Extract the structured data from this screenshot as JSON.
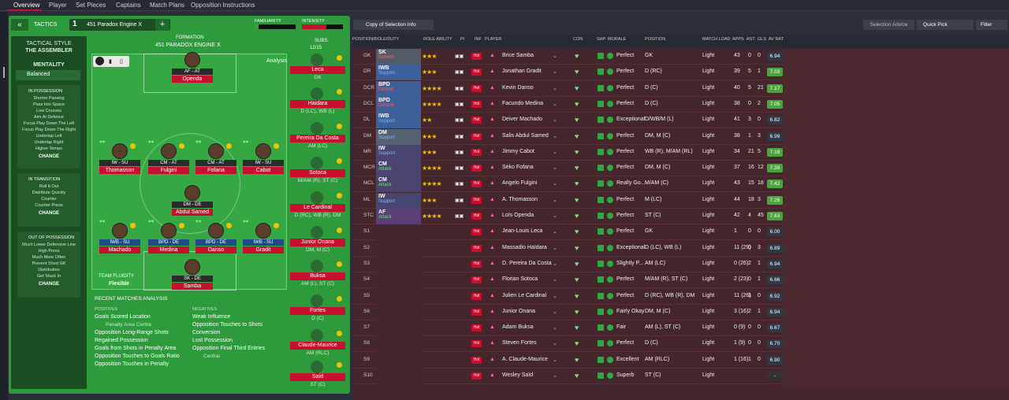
{
  "topnav": {
    "tabs": [
      "Overview",
      "Player",
      "Set Pieces",
      "Captains",
      "Match Plans",
      "Opposition Instructions"
    ]
  },
  "tactics": {
    "label": "TACTICS",
    "slot": "1",
    "name": "451 Paradox Engine X",
    "familiarity_label": "FAMILIARITY",
    "intensity_label": "INTENSITY",
    "formation_label": "FORMATION",
    "formation_name": "451 PARADOX ENGINE X",
    "subs_label": "SUBS:",
    "subs_count": "12/15",
    "analysis": "Analysis"
  },
  "sidebar": {
    "style_label": "TACTICAL STYLE",
    "style_value": "THE ASSEMBLER",
    "mentality_label": "MENTALITY",
    "mentality_value": "Balanced",
    "in_possession": {
      "title": "IN POSSESSION",
      "items": [
        "Shorter Passing",
        "Pass Into Space",
        "Low Crosses",
        "Aim At Defence",
        "Focus Play Down The Left",
        "Focus Play Down The Right",
        "Underlap Left",
        "Underlap Right",
        "Higher Tempo"
      ]
    },
    "in_transition": {
      "title": "IN TRANSITION",
      "items": [
        "Roll It Out",
        "Distribute Quickly",
        "Counter",
        "Counter-Press"
      ]
    },
    "out_of_possession": {
      "title": "OUT OF POSSESSION",
      "items": [
        "Much Lower Defensive Line",
        "High Press",
        "Much More Often",
        "Prevent Short GK",
        "Distribution",
        "Get Stuck In"
      ]
    },
    "change": "CHANGE"
  },
  "pitch": {
    "players": [
      {
        "role": "AF - AT",
        "name": "Openda"
      },
      {
        "role": "IW - SU",
        "name": "Thomasson"
      },
      {
        "role": "CM - AT",
        "name": "Fulgini"
      },
      {
        "role": "CM - AT",
        "name": "Fofana"
      },
      {
        "role": "IW - SU",
        "name": "Cabot"
      },
      {
        "role": "DM - DE",
        "name": "Abdul Samed"
      },
      {
        "role": "IWB - SU",
        "name": "Machado"
      },
      {
        "role": "BPD - DE",
        "name": "Medina"
      },
      {
        "role": "BPD - DE",
        "name": "Danso"
      },
      {
        "role": "IWB - SU",
        "name": "Gradit"
      },
      {
        "role": "SK - DE",
        "name": "Samba"
      }
    ],
    "fluidity_label": "TEAM FLUIDITY",
    "fluidity_value": "Flexible"
  },
  "subs": [
    {
      "name": "Leca",
      "pos": "GK"
    },
    {
      "name": "Haidara",
      "pos": "D (LC), WB (L)"
    },
    {
      "name": "Pereira Da Costa",
      "pos": "AM (LC)"
    },
    {
      "name": "Sotoca",
      "pos": "M/AM (R), ST (C)"
    },
    {
      "name": "Le Cardinal",
      "pos": "D (RC), WB (R), DM"
    },
    {
      "name": "Junior Onana",
      "pos": "DM, M (C)"
    },
    {
      "name": "Buksa",
      "pos": "AM (L), ST (C)"
    },
    {
      "name": "Fortes",
      "pos": "D (C)"
    },
    {
      "name": "Claude-Maurice",
      "pos": "AM (RLC)"
    },
    {
      "name": "Said",
      "pos": "ST (C)"
    }
  ],
  "recent": {
    "title": "RECENT MATCHES ANALYSIS",
    "pos_label": "POSITIVES",
    "neg_label": "NEGATIVES",
    "positives": [
      "Goals Scored Location",
      "Penalty Area Centre",
      "Opposition Long-Range Shots",
      "Regained Possession",
      "Goals from Shots in Penalty Area",
      "Opposition Touches to Goals Ratio",
      "Opposition Touches in Penalty"
    ],
    "negatives": [
      "Weak Influence",
      "Opposition Touches to Shots Conversion",
      "Lost Possession",
      "Opposition Final Third Entries",
      "Central"
    ]
  },
  "header_bar": {
    "selection": "Copy of Selection Info",
    "advice": "Selection Advice",
    "quick_pick": "Quick Pick",
    "filter": "Filter"
  },
  "columns": [
    "POSITION/ROLE/DUTY",
    "ROLE ABILITY",
    "PI",
    "INF",
    "PLAYER",
    "CON",
    "SHP",
    "MORALE",
    "POSITION",
    "MATCH LOAD",
    "APPS",
    "AST",
    "GLS",
    "AV RAT"
  ],
  "rows": [
    {
      "pos": "GK",
      "role": "SK",
      "duty": "Defend",
      "player": "Brice Samba",
      "morale": "Perfect",
      "position": "GK",
      "load": "Light",
      "apps": "43",
      "ast": "0",
      "gls": "0",
      "rat": "6.94"
    },
    {
      "pos": "DR",
      "role": "IWB",
      "duty": "Support",
      "player": "Jonathan Gradit",
      "morale": "Perfect",
      "position": "D (RC)",
      "load": "Light",
      "apps": "39",
      "ast": "5",
      "gls": "1",
      "rat": "7.03"
    },
    {
      "pos": "DCR",
      "role": "BPD",
      "duty": "Defend",
      "player": "Kevin Danso",
      "morale": "Perfect",
      "position": "D (C)",
      "load": "Light",
      "apps": "40",
      "ast": "5",
      "gls": "21",
      "rat": "7.17"
    },
    {
      "pos": "DCL",
      "role": "BPD",
      "duty": "Defend",
      "player": "Facundo Medina",
      "morale": "Perfect",
      "position": "D (C)",
      "load": "Light",
      "apps": "38",
      "ast": "0",
      "gls": "2",
      "rat": "7.05"
    },
    {
      "pos": "DL",
      "role": "IWB",
      "duty": "Support",
      "player": "Deiver Machado",
      "morale": "Exceptional",
      "position": "D/WB/M (L)",
      "load": "Light",
      "apps": "41",
      "ast": "3",
      "gls": "0",
      "rat": "6.82"
    },
    {
      "pos": "DM",
      "role": "DM",
      "duty": "Support",
      "player": "Salis Abdul Samed",
      "morale": "Perfect",
      "position": "DM, M (C)",
      "load": "Light",
      "apps": "38",
      "ast": "1",
      "gls": "3",
      "rat": "6.99"
    },
    {
      "pos": "MR",
      "role": "IW",
      "duty": "Support",
      "player": "Jimmy Cabot",
      "morale": "Perfect",
      "position": "WB (R), M/AM (RL)",
      "load": "Light",
      "apps": "34",
      "ast": "21",
      "gls": "5",
      "rat": "7.18"
    },
    {
      "pos": "MCR",
      "role": "CM",
      "duty": "Attack",
      "player": "Sėko Fofana",
      "morale": "Perfect",
      "position": "DM, M (C)",
      "load": "Light",
      "apps": "37",
      "ast": "16",
      "gls": "12",
      "rat": "7.39"
    },
    {
      "pos": "MCL",
      "role": "CM",
      "duty": "Attack",
      "player": "Angelo Fulgini",
      "morale": "Really Go...",
      "position": "M/AM (C)",
      "load": "Light",
      "apps": "43",
      "ast": "15",
      "gls": "18",
      "rat": "7.42"
    },
    {
      "pos": "ML",
      "role": "IW",
      "duty": "Support",
      "player": "A. Thomasson",
      "morale": "Perfect",
      "position": "M (LC)",
      "load": "Light",
      "apps": "44",
      "ast": "18",
      "gls": "3",
      "rat": "7.26"
    },
    {
      "pos": "STC",
      "role": "AF",
      "duty": "Attack",
      "player": "Loïs Openda",
      "morale": "Perfect",
      "position": "ST (C)",
      "load": "Light",
      "apps": "42",
      "ast": "4",
      "gls": "45",
      "rat": "7.63"
    },
    {
      "pos": "S1",
      "role": "",
      "duty": "",
      "player": "Jean-Louis Leca",
      "morale": "Perfect",
      "position": "GK",
      "load": "Light",
      "apps": "1",
      "ast": "0",
      "gls": "0",
      "rat": "6.00"
    },
    {
      "pos": "S2",
      "role": "",
      "duty": "",
      "player": "Massadio Haïdara",
      "morale": "Exceptional",
      "position": "D (LC), WB (L)",
      "load": "Light",
      "apps": "11 (29)",
      "ast": "0",
      "gls": "3",
      "rat": "6.89"
    },
    {
      "pos": "S3",
      "role": "",
      "duty": "",
      "player": "D. Pereira Da Costa",
      "morale": "Slightly P...",
      "position": "AM (LC)",
      "load": "Light",
      "apps": "0 (26)",
      "ast": "2",
      "gls": "1",
      "rat": "6.94"
    },
    {
      "pos": "S4",
      "role": "",
      "duty": "",
      "player": "Florian Sotoca",
      "morale": "Perfect",
      "position": "M/AM (R), ST (C)",
      "load": "Light",
      "apps": "2 (23)",
      "ast": "0",
      "gls": "1",
      "rat": "6.66"
    },
    {
      "pos": "S5",
      "role": "",
      "duty": "",
      "player": "Julien Le Cardinal",
      "morale": "Perfect",
      "position": "D (RC), WB (R), DM",
      "load": "Light",
      "apps": "11 (26)",
      "ast": "1",
      "gls": "0",
      "rat": "6.92"
    },
    {
      "pos": "S6",
      "role": "",
      "duty": "",
      "player": "Junior Onana",
      "morale": "Fairly Okay",
      "position": "DM, M (C)",
      "load": "Light",
      "apps": "3 (16)",
      "ast": "2",
      "gls": "1",
      "rat": "6.94"
    },
    {
      "pos": "S7",
      "role": "",
      "duty": "",
      "player": "Adam Buksa",
      "morale": "Fair",
      "position": "AM (L), ST (C)",
      "load": "Light",
      "apps": "0 (9)",
      "ast": "0",
      "gls": "0",
      "rat": "6.67"
    },
    {
      "pos": "S8",
      "role": "",
      "duty": "",
      "player": "Steven Fortes",
      "morale": "Perfect",
      "position": "D (C)",
      "load": "Light",
      "apps": "1 (9)",
      "ast": "0",
      "gls": "0",
      "rat": "6.70"
    },
    {
      "pos": "S9",
      "role": "",
      "duty": "",
      "player": "A. Claude-Maurice",
      "morale": "Excellent",
      "position": "AM (RLC)",
      "load": "Light",
      "apps": "1 (16)",
      "ast": "1",
      "gls": "0",
      "rat": "6.90"
    },
    {
      "pos": "S10",
      "role": "",
      "duty": "",
      "player": "Wesley Saïd",
      "morale": "Superb",
      "position": "ST (C)",
      "load": "Light",
      "apps": "",
      "ast": "",
      "gls": "",
      "rat": "-"
    }
  ],
  "colors": {
    "accent": "#c8102e",
    "green": "#2d9a3c",
    "defend": "#ff5f5f",
    "support": "#7fb3ff",
    "attack": "#6fe07a"
  }
}
